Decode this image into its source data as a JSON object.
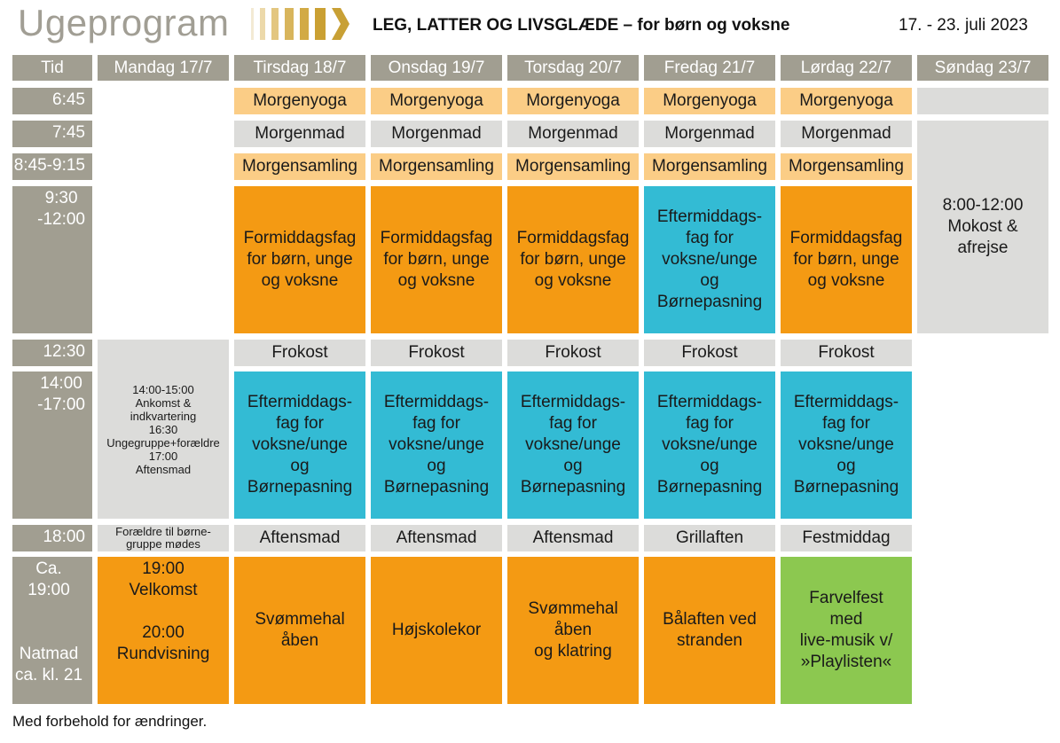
{
  "header": {
    "title": "Ugeprogram",
    "subtitle": "LEG, LATTER OG LIVSGLÆDE – for børn og voksne",
    "dates": "17. - 23. juli 2023"
  },
  "columns": [
    "Tid",
    "Mandag 17/7",
    "Tirsdag 18/7",
    "Onsdag 19/7",
    "Torsdag 20/7",
    "Fredag 21/7",
    "Lørdag 22/7",
    "Søndag 23/7"
  ],
  "times": {
    "t645": "6:45",
    "t745": "7:45",
    "t845": "8:45-9:15",
    "t930": "9:30\n-12:00",
    "t1230": "12:30",
    "t1400": "14:00\n-17:00",
    "t1800": "18:00",
    "t1900": "Ca. 19:00\n\n\nNatmad\nca. kl. 21"
  },
  "monday": {
    "afternoon": "14:00-15:00\nAnkomst &\nindkvartering\n16:30\nUngegruppe+forældre\n17:00\nAftensmad",
    "evening_note": "Forældre til børne-\ngruppe mødes",
    "evening": "19:00\nVelkomst\n\n20:00\nRundvisning"
  },
  "tuesday": {
    "yoga": "Morgenyoga",
    "breakfast": "Morgenmad",
    "assembly": "Morgensamling",
    "morning": "Formiddagsfag\nfor børn, unge\nog voksne",
    "lunch": "Frokost",
    "afternoon": "Eftermiddags-\nfag for\nvoksne/unge\nog Børnepasning",
    "dinner": "Aftensmad",
    "evening": "Svømmehal\nåben"
  },
  "wednesday": {
    "yoga": "Morgenyoga",
    "breakfast": "Morgenmad",
    "assembly": "Morgensamling",
    "morning": "Formiddagsfag\nfor børn, unge\nog voksne",
    "lunch": "Frokost",
    "afternoon": "Eftermiddags-\nfag for\nvoksne/unge\nog Børnepasning",
    "dinner": "Aftensmad",
    "evening": "Højskolekor"
  },
  "thursday": {
    "yoga": "Morgenyoga",
    "breakfast": "Morgenmad",
    "assembly": "Morgensamling",
    "morning": "Formiddagsfag\nfor børn, unge\nog voksne",
    "lunch": "Frokost",
    "afternoon": "Eftermiddags-\nfag for\nvoksne/unge\nog Børnepasning",
    "dinner": "Aftensmad",
    "evening": "Svømmehal\nåben\nog klatring"
  },
  "friday": {
    "yoga": "Morgenyoga",
    "breakfast": "Morgenmad",
    "assembly": "Morgensamling",
    "morning": "Eftermiddags-\nfag for\nvoksne/unge\nog Børnepasning",
    "lunch": "Frokost",
    "afternoon": "Eftermiddags-\nfag for\nvoksne/unge\nog Børnepasning",
    "dinner": "Grillaften",
    "evening": "Bålaften ved\nstranden"
  },
  "saturday": {
    "yoga": "Morgenyoga",
    "breakfast": "Morgenmad",
    "assembly": "Morgensamling",
    "morning": "Formiddagsfag\nfor børn, unge\nog voksne",
    "lunch": "Frokost",
    "afternoon": "Eftermiddags-\nfag for\nvoksne/unge\nog Børnepasning",
    "dinner": "Festmiddag",
    "evening": "Farvelfest\nmed\nlive-musik v/\n»Playlisten«"
  },
  "sunday": {
    "morning": "8:00-12:00\nMokost &\nafrejse"
  },
  "footer": "Med forbehold for ændringer.",
  "colors": {
    "header_gray": "#a19e91",
    "light_gray": "#dcdcda",
    "peach": "#fbcd86",
    "orange": "#f49a13",
    "cyan": "#33bbd4",
    "green": "#8cc850",
    "title_gray": "#a19e94"
  }
}
